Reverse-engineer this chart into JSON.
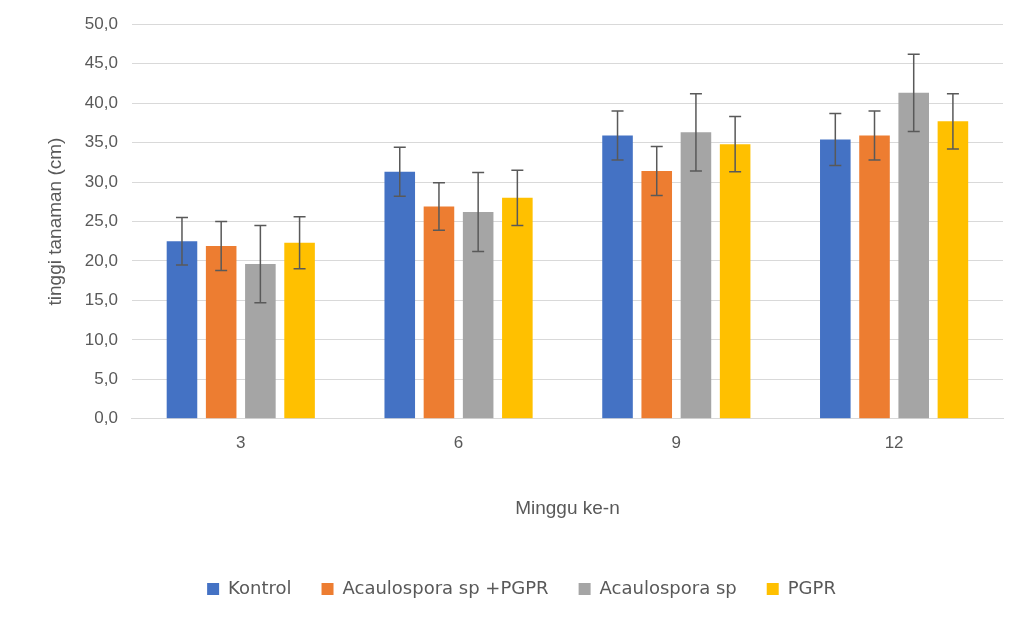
{
  "chart_data": {
    "type": "bar",
    "xlabel": "Minggu ke-n",
    "ylabel": "tinggi tanaman (cm)",
    "categories": [
      "3",
      "6",
      "9",
      "12"
    ],
    "series": [
      {
        "name": "Kontrol",
        "color": "#4472c4",
        "values": [
          22.5,
          31.3,
          35.9,
          35.4
        ],
        "errors": [
          3.0,
          3.1,
          3.1,
          3.3
        ]
      },
      {
        "name": "Acaulospora sp +PGPR",
        "color": "#ed7d31",
        "values": [
          21.9,
          26.9,
          31.4,
          35.9
        ],
        "errors": [
          3.1,
          3.0,
          3.1,
          3.1
        ]
      },
      {
        "name": "Acaulospora sp",
        "color": "#a5a5a5",
        "values": [
          19.6,
          26.2,
          36.3,
          41.3
        ],
        "errors": [
          4.9,
          5.0,
          4.9,
          4.9
        ]
      },
      {
        "name": "PGPR",
        "color": "#ffc000",
        "values": [
          22.3,
          28.0,
          34.8,
          37.7
        ],
        "errors": [
          3.3,
          3.5,
          3.5,
          3.5
        ]
      }
    ],
    "ylim": [
      0,
      50
    ],
    "yticks": [
      {
        "value": 0,
        "label": "0,0"
      },
      {
        "value": 5,
        "label": "5,0"
      },
      {
        "value": 10,
        "label": "10,0"
      },
      {
        "value": 15,
        "label": "15,0"
      },
      {
        "value": 20,
        "label": "20,0"
      },
      {
        "value": 25,
        "label": "25,0"
      },
      {
        "value": 30,
        "label": "30,0"
      },
      {
        "value": 35,
        "label": "35,0"
      },
      {
        "value": 40,
        "label": "40,0"
      },
      {
        "value": 45,
        "label": "45,0"
      },
      {
        "value": 50,
        "label": "50,0"
      }
    ],
    "grid": "y",
    "legend": "bottom"
  }
}
